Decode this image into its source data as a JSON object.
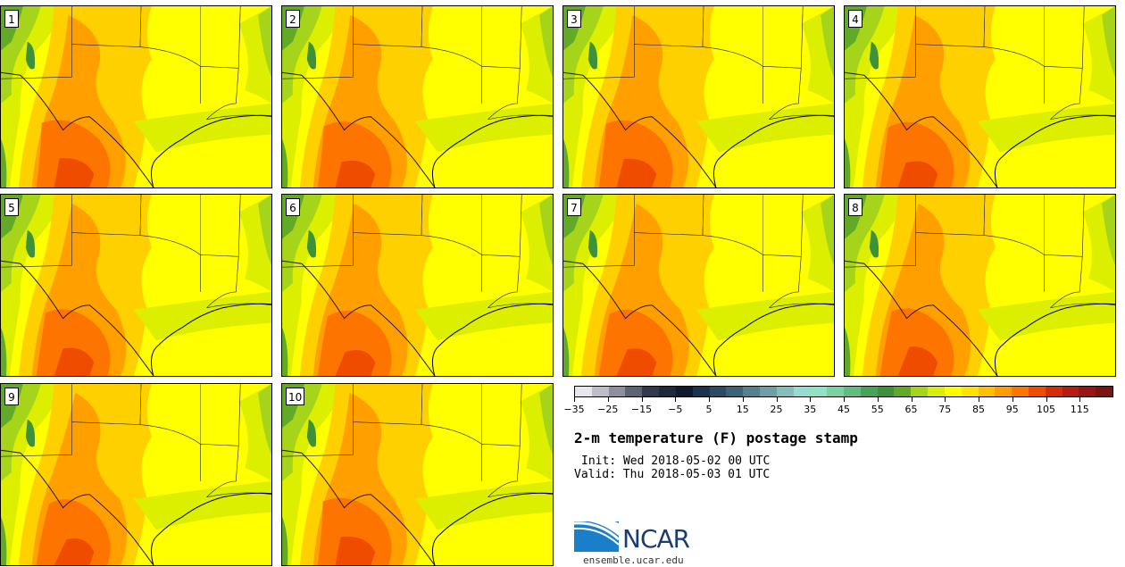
{
  "header": {
    "title": "2-m temperature (F) postage stamp",
    "init": "Init: Wed 2018-05-02 00 UTC",
    "valid": "Valid: Thu 2018-05-03 01 UTC"
  },
  "members": [
    "1",
    "2",
    "3",
    "4",
    "5",
    "6",
    "7",
    "8",
    "9",
    "10"
  ],
  "colorbar": {
    "tick_labels": [
      "−35",
      "−25",
      "−15",
      "−5",
      "5",
      "15",
      "25",
      "35",
      "45",
      "55",
      "65",
      "75",
      "85",
      "95",
      "105",
      "115"
    ],
    "colors": [
      "#e6e6ec",
      "#bdbdc7",
      "#8e8e9c",
      "#5e6374",
      "#313a4d",
      "#1d2a3e",
      "#0e1a30",
      "#1c3350",
      "#2b4a63",
      "#3d6275",
      "#55808d",
      "#6f9ea6",
      "#85bdbd",
      "#94dcd2",
      "#8fe3c4",
      "#7ad1a1",
      "#5ebd7f",
      "#47a356",
      "#3e913b",
      "#63a928",
      "#a5d41a",
      "#d8ec10",
      "#fffb00",
      "#ffe200",
      "#ffc000",
      "#ff9c00",
      "#fd7500",
      "#f04c00",
      "#d42d0a",
      "#b81c10",
      "#991515",
      "#7a1410"
    ]
  },
  "logo": {
    "name": "NCAR",
    "website": "ensemble.ucar.edu"
  },
  "map_colors": {
    "yellow": "#ffff00",
    "yellow_green": "#dcef00",
    "light_green": "#a5d41a",
    "green": "#63a928",
    "dark_green": "#3e913b",
    "amber": "#ffd000",
    "orange": "#ffa000",
    "dark_orange": "#fd7500",
    "red_orange": "#f04c00"
  }
}
